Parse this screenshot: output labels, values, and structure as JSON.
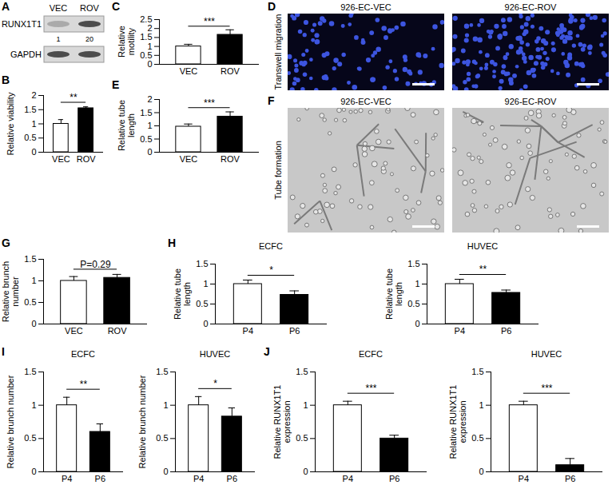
{
  "chart_data": [
    {
      "panel": "A",
      "type": "blot",
      "categories": [
        "VEC",
        "ROV"
      ],
      "rows": [
        "RUNX1T1",
        "GAPDH"
      ],
      "values": [
        1,
        20
      ]
    },
    {
      "panel": "B",
      "type": "bar",
      "ylabel": "Relative viability",
      "categories": [
        "VEC",
        "ROV"
      ],
      "values": [
        1.0,
        1.55
      ],
      "errors": [
        0.15,
        0.05
      ],
      "colors": [
        "#ffffff",
        "#000000"
      ],
      "ylim": [
        0,
        2
      ],
      "yticks": [
        0,
        0.5,
        1,
        1.5,
        2
      ],
      "annotation": "**"
    },
    {
      "panel": "C",
      "type": "bar",
      "ylabel": "Relative motility",
      "categories": [
        "VEC",
        "ROV"
      ],
      "values": [
        1.0,
        1.65
      ],
      "errors": [
        0.12,
        0.28
      ],
      "colors": [
        "#ffffff",
        "#000000"
      ],
      "ylim": [
        0,
        2.5
      ],
      "yticks": [
        0,
        0.5,
        1,
        1.5,
        2,
        2.5
      ],
      "annotation": "***"
    },
    {
      "panel": "D",
      "type": "image",
      "ylabel": "Transwell migration",
      "titles": [
        "926-EC-VEC",
        "926-EC-ROV"
      ]
    },
    {
      "panel": "E",
      "type": "bar",
      "ylabel": "Relative tube length",
      "categories": [
        "VEC",
        "ROV"
      ],
      "values": [
        0.97,
        1.35
      ],
      "errors": [
        0.1,
        0.18
      ],
      "colors": [
        "#ffffff",
        "#000000"
      ],
      "ylim": [
        0,
        2
      ],
      "yticks": [
        0,
        0.5,
        1,
        1.5,
        2
      ],
      "annotation": "***"
    },
    {
      "panel": "F",
      "type": "image",
      "ylabel": "Tube formation",
      "titles": [
        "926-EC-VEC",
        "926-EC-ROV"
      ]
    },
    {
      "panel": "G",
      "type": "bar",
      "ylabel": "Relative brunch number",
      "categories": [
        "VEC",
        "ROV"
      ],
      "values": [
        1.0,
        1.07
      ],
      "errors": [
        0.1,
        0.08
      ],
      "colors": [
        "#ffffff",
        "#000000"
      ],
      "ylim": [
        0,
        1.5
      ],
      "yticks": [
        0,
        0.5,
        1,
        1.5
      ],
      "annotation": "P=0.29"
    },
    {
      "panel": "H",
      "type": "bar",
      "title": "ECFC",
      "ylabel": "Relative tube length",
      "categories": [
        "P4",
        "P6"
      ],
      "values": [
        1.0,
        0.73
      ],
      "errors": [
        0.1,
        0.1
      ],
      "colors": [
        "#ffffff",
        "#000000"
      ],
      "ylim": [
        0,
        1.5
      ],
      "yticks": [
        0,
        0.5,
        1,
        1.5
      ],
      "annotation": "*"
    },
    {
      "type": "bar",
      "title": "HUVEC",
      "ylabel": "Relative tube length",
      "categories": [
        "P4",
        "P6"
      ],
      "values": [
        1.0,
        0.78
      ],
      "errors": [
        0.12,
        0.07
      ],
      "colors": [
        "#ffffff",
        "#000000"
      ],
      "ylim": [
        0,
        1.5
      ],
      "yticks": [
        0,
        0.5,
        1,
        1.5
      ],
      "annotation": "**"
    },
    {
      "panel": "I",
      "type": "bar",
      "title": "ECFC",
      "ylabel": "Relative brunch number",
      "categories": [
        "P4",
        "P6"
      ],
      "values": [
        1.0,
        0.6
      ],
      "errors": [
        0.12,
        0.12
      ],
      "colors": [
        "#ffffff",
        "#000000"
      ],
      "ylim": [
        0,
        1.5
      ],
      "yticks": [
        0,
        0.5,
        1,
        1.5
      ],
      "annotation": "**"
    },
    {
      "type": "bar",
      "title": "HUVEC",
      "ylabel": "Relative brunch number",
      "categories": [
        "P4",
        "P6"
      ],
      "values": [
        1.0,
        0.83
      ],
      "errors": [
        0.13,
        0.13
      ],
      "colors": [
        "#ffffff",
        "#000000"
      ],
      "ylim": [
        0,
        1.5
      ],
      "yticks": [
        0,
        0.5,
        1,
        1.5
      ],
      "annotation": "*"
    },
    {
      "panel": "J",
      "type": "bar",
      "title": "ECFC",
      "ylabel": "Relative RUNX1T1 expression",
      "categories": [
        "P4",
        "P6"
      ],
      "values": [
        1.0,
        0.5
      ],
      "errors": [
        0.06,
        0.05
      ],
      "colors": [
        "#ffffff",
        "#000000"
      ],
      "ylim": [
        0,
        1.5
      ],
      "yticks": [
        0,
        0.5,
        1,
        1.5
      ],
      "annotation": "***"
    },
    {
      "type": "bar",
      "title": "HUVEC",
      "ylabel": "Relative RUNX1T1 expression",
      "categories": [
        "P4",
        "P6"
      ],
      "values": [
        1.0,
        0.1
      ],
      "errors": [
        0.06,
        0.1
      ],
      "colors": [
        "#ffffff",
        "#000000"
      ],
      "ylim": [
        0,
        1.5
      ],
      "yticks": [
        0,
        0.5,
        1,
        1.5
      ],
      "annotation": "***"
    }
  ]
}
